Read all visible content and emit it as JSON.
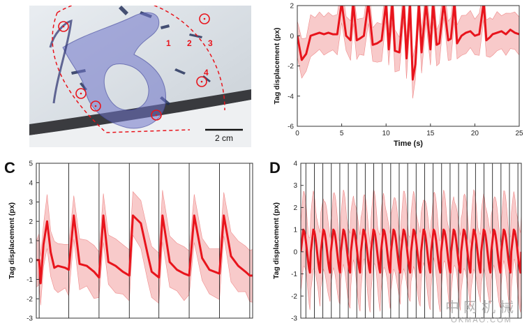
{
  "panels": {
    "A": {
      "scale_bar": "2 cm",
      "region_labels": [
        "1",
        "2",
        "3",
        "4"
      ]
    },
    "B": {
      "letter": "",
      "chart_data": {
        "type": "line",
        "title": "",
        "xlabel": "Time (s)",
        "ylabel": "Tag displacement (px)",
        "xlim": [
          0,
          25
        ],
        "ylim": [
          -6,
          2
        ],
        "xticks": [
          0,
          5,
          10,
          15,
          20,
          25
        ],
        "yticks": [
          -6,
          -4,
          -2,
          0,
          2
        ],
        "line_color": "#e8141c",
        "band_color": "#f6b8b8",
        "series": [
          {
            "name": "mean",
            "x": [
              0,
              0.5,
              1,
              1.5,
              2,
              2.5,
              3,
              3.5,
              4,
              4.5,
              5,
              5.5,
              6,
              6.3,
              6.7,
              7,
              7.5,
              8,
              8.5,
              9,
              9.5,
              10,
              10.3,
              10.7,
              11,
              11.5,
              12,
              12.3,
              12.7,
              13,
              13.3,
              13.7,
              14,
              14.5,
              15,
              15.3,
              15.7,
              16,
              16.5,
              17,
              17.3,
              17.7,
              18,
              18.5,
              19,
              19.5,
              20,
              20.5,
              21,
              21.3,
              21.7,
              22,
              22.5,
              23,
              23.5,
              24,
              24.5,
              25
            ],
            "values": [
              0,
              -1.6,
              -1.2,
              0,
              0.1,
              0.2,
              0.1,
              0.2,
              0.1,
              0.1,
              2.2,
              0,
              -0.3,
              2.2,
              -0.3,
              -0.2,
              0,
              2.2,
              -0.6,
              -0.5,
              -0.3,
              2.2,
              -0.9,
              2.2,
              -1,
              -1.1,
              2.2,
              -1.5,
              2.2,
              -2.9,
              -1.9,
              2.2,
              -1.1,
              2.2,
              -0.9,
              2.2,
              -0.6,
              -0.5,
              2.2,
              -0.3,
              -0.2,
              2.2,
              -0.5,
              0,
              0.2,
              0.3,
              0,
              0.1,
              2.2,
              -0.3,
              -0.1,
              0.1,
              0.2,
              0.3,
              0.1,
              0.4,
              0.2,
              0.1
            ],
            "band": 1.4
          }
        ]
      }
    },
    "C": {
      "letter": "C",
      "chart_data": {
        "type": "line",
        "title": "",
        "xlabel": "",
        "ylabel": "Tag displacement (px)",
        "xlim": [
          0,
          30
        ],
        "ylim": [
          -3,
          5
        ],
        "yticks": [
          -3,
          -2,
          -1,
          0,
          1,
          2,
          3,
          4,
          5
        ],
        "event_lines_x": [
          0.4,
          4.5,
          8.7,
          12.9,
          17,
          21.2,
          25.4,
          29.6
        ],
        "line_color": "#e8141c",
        "band_color": "#f6b8b8",
        "series": [
          {
            "name": "mean",
            "x": [
              0,
              0.4,
              0.6,
              1,
              1.5,
              2,
              2.5,
              3,
              4,
              4.5,
              5.2,
              6,
              7,
              8,
              8.7,
              9.3,
              10,
              11,
              12,
              12.9,
              13.4,
              14.5,
              15.5,
              16,
              17,
              17.5,
              18.5,
              19.5,
              20.5,
              21.2,
              21.9,
              23,
              24,
              25.4,
              26,
              27,
              28,
              29,
              29.6,
              30
            ],
            "values": [
              0,
              0,
              -1.2,
              0.8,
              2,
              0.4,
              -0.4,
              -0.3,
              -0.4,
              -0.5,
              2.3,
              -0.2,
              -0.3,
              -0.6,
              -0.9,
              2.3,
              -0.1,
              -0.3,
              -0.6,
              -0.8,
              2.3,
              1.9,
              0.2,
              -0.6,
              -0.9,
              2.3,
              -0.1,
              -0.5,
              -0.7,
              -0.8,
              2.3,
              0.1,
              -0.5,
              -0.7,
              2.3,
              0.2,
              -0.3,
              -0.6,
              -0.8,
              -0.8
            ],
            "band": 1.4
          }
        ]
      }
    },
    "D": {
      "letter": "D",
      "chart_data": {
        "type": "line",
        "title": "",
        "xlabel": "",
        "ylabel": "Tag displacement (px)",
        "xlim": [
          0,
          30
        ],
        "ylim": [
          -3,
          4
        ],
        "yticks": [
          -3,
          -2,
          -1,
          0,
          1,
          2,
          3,
          4
        ],
        "event_count": 26,
        "mean_cycle_count": 22,
        "mean_amplitude": 1.0,
        "band": 1.8,
        "line_color": "#e8141c",
        "band_color": "#f6b8b8"
      }
    }
  },
  "watermark": {
    "cn": "中网机械",
    "en": "OKMAO.COM"
  }
}
